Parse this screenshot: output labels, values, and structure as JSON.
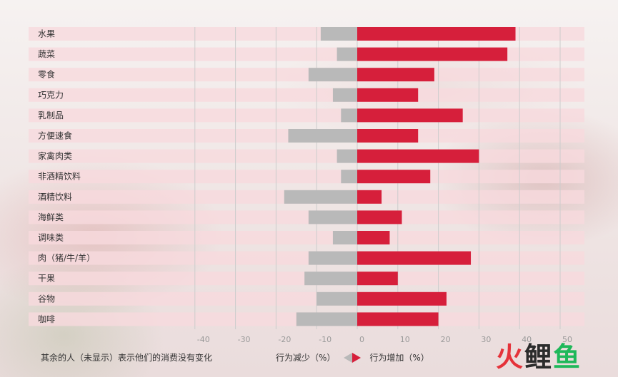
{
  "chart_data": {
    "type": "bar",
    "orientation": "horizontal",
    "categories": [
      "水果",
      "蔬菜",
      "零食",
      "巧克力",
      "乳制品",
      "方便速食",
      "家禽肉类",
      "非酒精饮料",
      "酒精饮料",
      "海鲜类",
      "调味类",
      "肉（猪/牛/羊）",
      "干果",
      "谷物",
      "咖啡"
    ],
    "series": [
      {
        "name": "行为减少（%）",
        "color": "#b9b9b9",
        "values": [
          -9,
          -5,
          -12,
          -6,
          -4,
          -17,
          -5,
          -4,
          -18,
          -12,
          -6,
          -12,
          -13,
          -10,
          -15
        ]
      },
      {
        "name": "行为增加（%）",
        "color": "#d61f3b",
        "values": [
          39,
          37,
          19,
          15,
          26,
          15,
          30,
          18,
          6,
          11,
          8,
          28,
          10,
          22,
          20
        ]
      }
    ],
    "xlim": [
      -40,
      50
    ],
    "xticks": [
      -40,
      -30,
      -20,
      -10,
      0,
      10,
      20,
      30,
      40,
      50
    ],
    "grid": true,
    "colors": {
      "decrease": "#b9b9b9",
      "increase": "#d61f3b",
      "row_stripe": "#f7d9dd",
      "grid": "#cccccc"
    }
  },
  "footer": {
    "note": "其余的人（未显示）表示他们的消费没有变化",
    "legend_decrease": "行为减少（%）",
    "legend_increase": "行为增加（%）"
  },
  "watermark": {
    "char1": "火",
    "char2": "鲤",
    "char3": "鱼"
  }
}
